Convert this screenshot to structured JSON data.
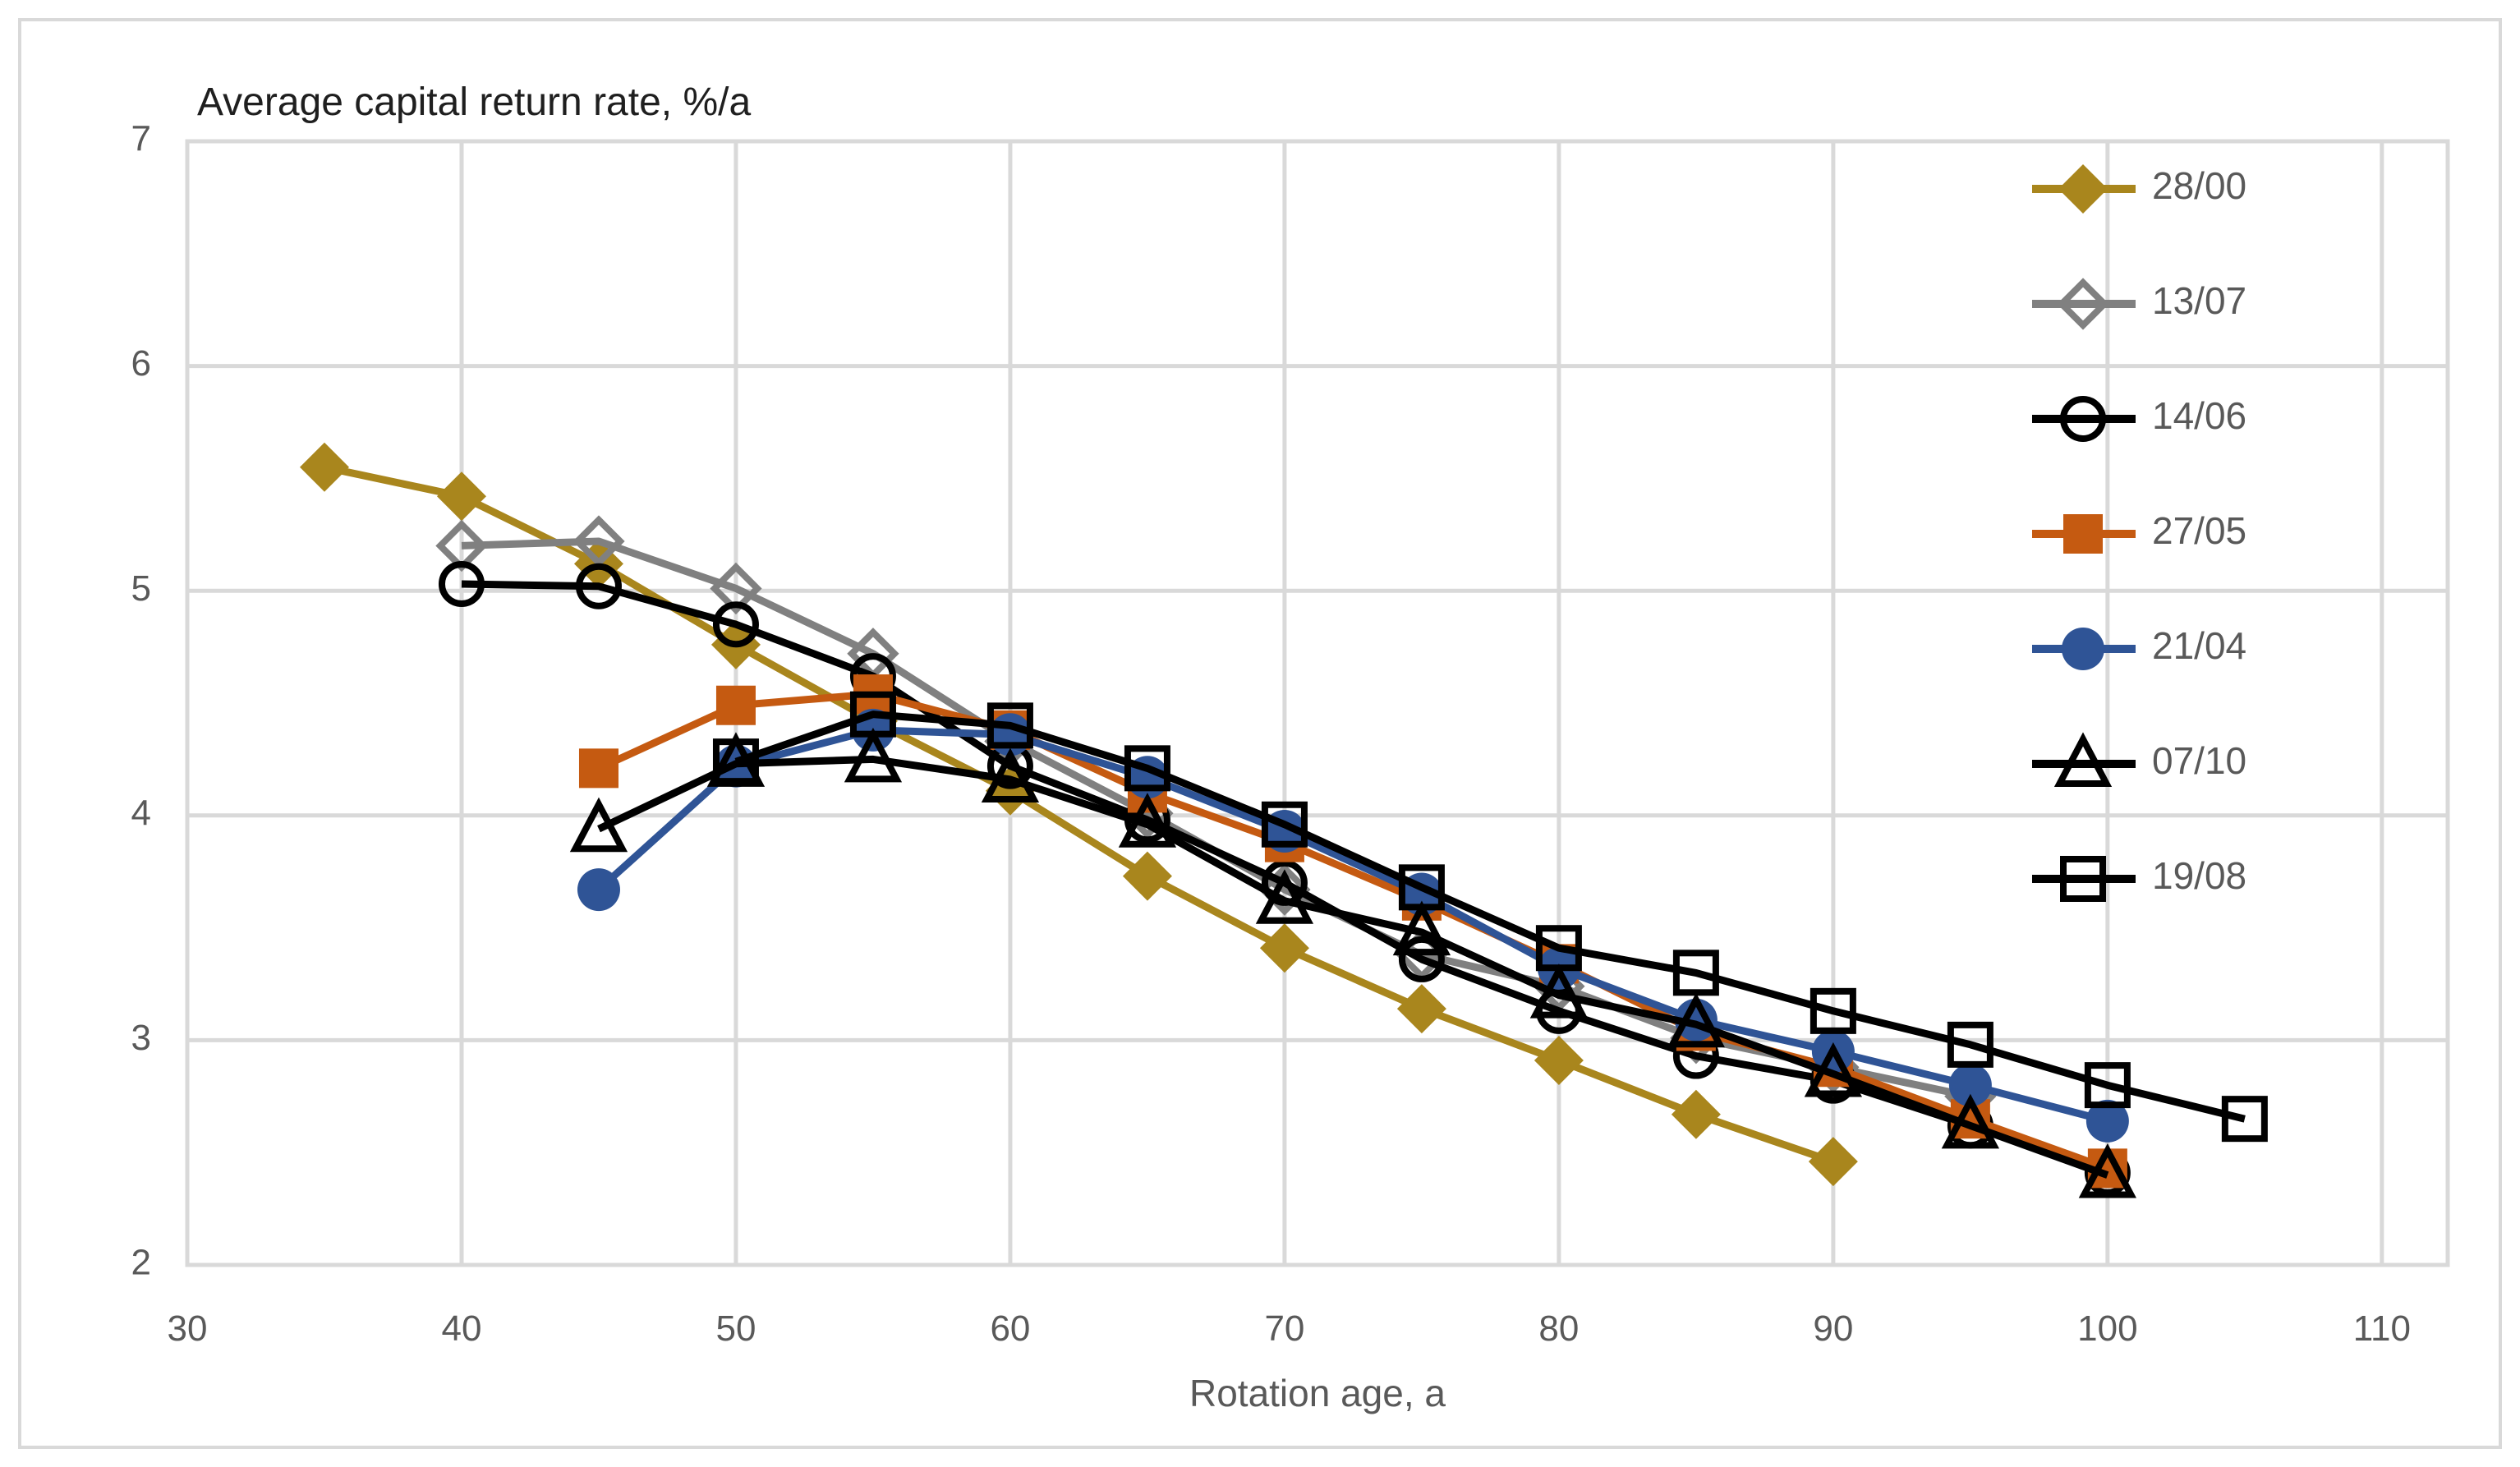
{
  "chart": {
    "title": "Average capital return rate,  %/a",
    "x_axis_label": "Rotation age, a",
    "title_color": "#1f1f1f",
    "tick_color": "#595959",
    "axis_label_color": "#595959",
    "grid_color": "#d9d9d9",
    "frame_color": "#d9d9d9",
    "background": "#ffffff",
    "legend_text_color": "#595959"
  },
  "chart_data": {
    "type": "line",
    "title": "Average capital return rate,  %/a",
    "xlabel": "Rotation age, a",
    "ylabel": "",
    "xlim": [
      30,
      112.4
    ],
    "ylim": [
      2,
      7
    ],
    "x_ticks": [
      30,
      40,
      50,
      60,
      70,
      80,
      90,
      100,
      110
    ],
    "y_ticks": [
      2,
      3,
      4,
      5,
      6,
      7
    ],
    "grid": true,
    "legend_position": "right-inside",
    "series": [
      {
        "name": "28/00",
        "color": "#A9861D",
        "marker": "diamond-filled",
        "points": [
          [
            35,
            5.55
          ],
          [
            40,
            5.42
          ],
          [
            45,
            5.12
          ],
          [
            50,
            4.76
          ],
          [
            55,
            4.42
          ],
          [
            60,
            4.11
          ],
          [
            65,
            3.73
          ],
          [
            70,
            3.41
          ],
          [
            75,
            3.14
          ],
          [
            80,
            2.91
          ],
          [
            85,
            2.67
          ],
          [
            90,
            2.46
          ]
        ]
      },
      {
        "name": "13/07",
        "color": "#808080",
        "marker": "diamond-open",
        "points": [
          [
            40,
            5.2
          ],
          [
            45,
            5.22
          ],
          [
            50,
            5.01
          ],
          [
            55,
            4.72
          ],
          [
            60,
            4.33
          ],
          [
            65,
            4.01
          ],
          [
            70,
            3.67
          ],
          [
            75,
            3.38
          ],
          [
            80,
            3.24
          ],
          [
            85,
            3.01
          ],
          [
            90,
            2.88
          ],
          [
            95,
            2.75
          ]
        ]
      },
      {
        "name": "14/06",
        "color": "#000000",
        "marker": "circle-open",
        "points": [
          [
            40,
            5.03
          ],
          [
            45,
            5.02
          ],
          [
            50,
            4.85
          ],
          [
            55,
            4.62
          ],
          [
            60,
            4.22
          ],
          [
            65,
            3.98
          ],
          [
            70,
            3.7
          ],
          [
            75,
            3.36
          ],
          [
            80,
            3.13
          ],
          [
            85,
            2.93
          ],
          [
            90,
            2.82
          ],
          [
            95,
            2.62
          ],
          [
            100,
            2.41
          ]
        ]
      },
      {
        "name": "27/05",
        "color": "#C55A11",
        "marker": "square-filled",
        "points": [
          [
            45,
            4.21
          ],
          [
            50,
            4.49
          ],
          [
            55,
            4.54
          ],
          [
            60,
            4.38
          ],
          [
            65,
            4.1
          ],
          [
            70,
            3.88
          ],
          [
            75,
            3.62
          ],
          [
            80,
            3.34
          ],
          [
            85,
            3.04
          ],
          [
            90,
            2.88
          ],
          [
            95,
            2.65
          ],
          [
            100,
            2.43
          ]
        ]
      },
      {
        "name": "21/04",
        "color": "#2F5496",
        "marker": "circle-filled",
        "points": [
          [
            45,
            3.67
          ],
          [
            50,
            4.22
          ],
          [
            55,
            4.38
          ],
          [
            60,
            4.36
          ],
          [
            65,
            4.17
          ],
          [
            70,
            3.93
          ],
          [
            75,
            3.65
          ],
          [
            80,
            3.32
          ],
          [
            85,
            3.09
          ],
          [
            90,
            2.95
          ],
          [
            95,
            2.8
          ],
          [
            100,
            2.64
          ]
        ]
      },
      {
        "name": "07/10",
        "color": "#000000",
        "marker": "triangle-open",
        "points": [
          [
            45,
            3.94
          ],
          [
            50,
            4.23
          ],
          [
            55,
            4.25
          ],
          [
            60,
            4.16
          ],
          [
            65,
            3.96
          ],
          [
            70,
            3.62
          ],
          [
            75,
            3.48
          ],
          [
            80,
            3.2
          ],
          [
            85,
            3.07
          ],
          [
            90,
            2.85
          ],
          [
            95,
            2.62
          ],
          [
            100,
            2.4
          ]
        ]
      },
      {
        "name": "19/08",
        "color": "#000000",
        "marker": "square-open",
        "points": [
          [
            50,
            4.24
          ],
          [
            55,
            4.45
          ],
          [
            60,
            4.4
          ],
          [
            65,
            4.21
          ],
          [
            70,
            3.96
          ],
          [
            75,
            3.68
          ],
          [
            80,
            3.41
          ],
          [
            85,
            3.3
          ],
          [
            90,
            3.13
          ],
          [
            95,
            2.98
          ],
          [
            100,
            2.8
          ],
          [
            105,
            2.65
          ]
        ]
      }
    ]
  }
}
